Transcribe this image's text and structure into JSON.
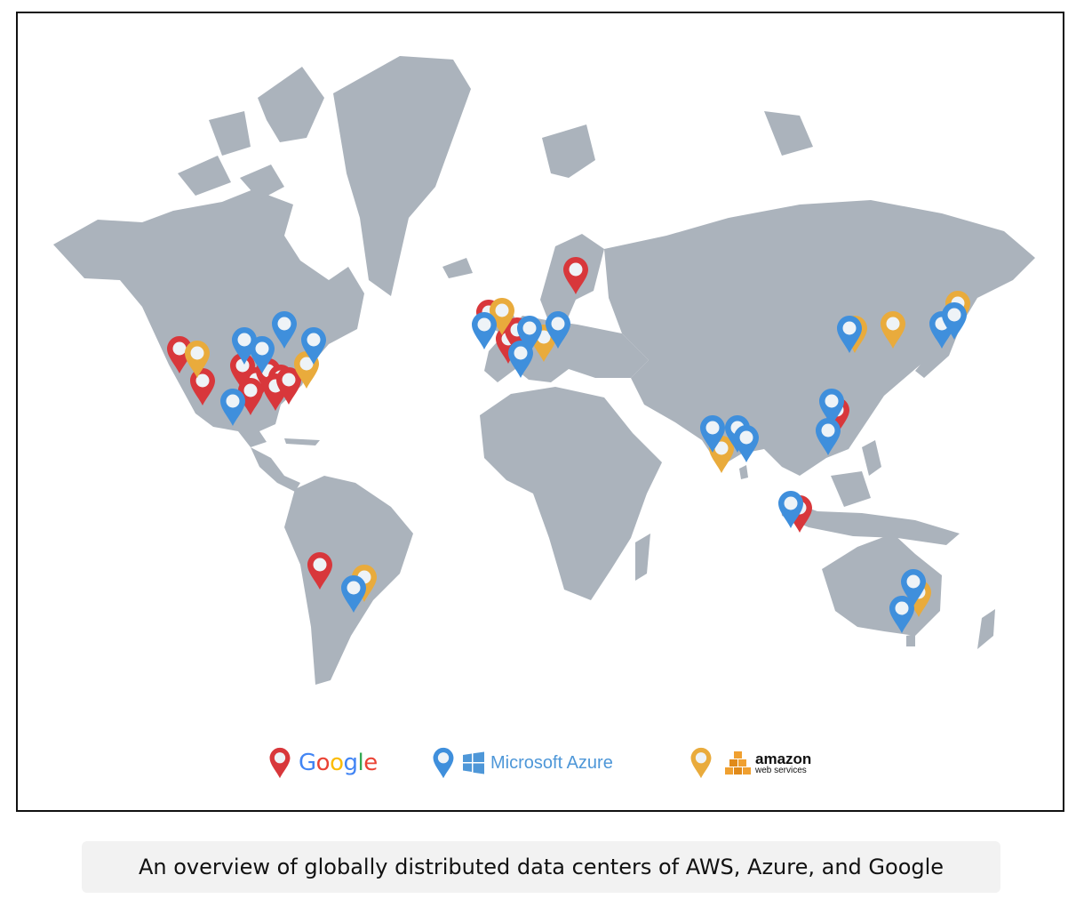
{
  "legend": {
    "google": {
      "word_letters": [
        "G",
        "o",
        "o",
        "g",
        "l",
        "e"
      ],
      "pin_color": "#d8373b",
      "pin_icon": "map-pin-icon"
    },
    "azure": {
      "label": "Microsoft Azure",
      "pin_color": "#3f8fdc",
      "logo_icon": "windows-logo-icon"
    },
    "aws": {
      "word": "amazon",
      "sub": "web services",
      "pin_color": "#e9ab3c",
      "logo_icon": "aws-cubes-logo-icon"
    }
  },
  "google_letter_colors": [
    "#4285F4",
    "#EA4335",
    "#FBBC05",
    "#4285F4",
    "#34A853",
    "#EA4335"
  ],
  "caption": "An overview of globally distributed data centers of AWS, Azure, and Google"
}
